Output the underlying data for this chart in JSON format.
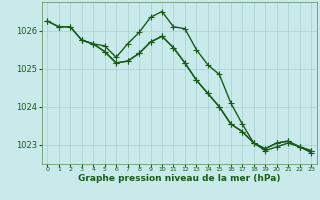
{
  "line1": {
    "x": [
      0,
      1,
      2,
      3,
      4,
      5,
      6,
      7,
      8,
      9,
      10,
      11,
      12,
      13,
      14,
      15,
      16,
      17,
      18,
      19,
      20,
      21,
      22,
      23
    ],
    "y": [
      1026.25,
      1026.1,
      1026.1,
      1025.75,
      1025.65,
      1025.6,
      1025.3,
      1025.65,
      1025.95,
      1026.35,
      1026.5,
      1026.1,
      1026.05,
      1025.5,
      1025.1,
      1024.85,
      1024.1,
      1023.55,
      1023.05,
      1022.85,
      1022.95,
      1023.05,
      1022.95,
      1022.8
    ]
  },
  "line2": {
    "x": [
      0,
      1,
      2,
      3,
      4,
      5,
      6,
      7,
      8,
      9,
      10,
      11,
      12,
      13,
      14,
      15,
      16,
      17,
      18,
      19,
      20,
      21,
      22,
      23
    ],
    "y": [
      1026.25,
      1026.1,
      1026.1,
      1025.75,
      1025.65,
      1025.45,
      1025.15,
      1025.2,
      1025.4,
      1025.7,
      1025.85,
      1025.55,
      1025.15,
      1024.7,
      1024.35,
      1024.0,
      1023.55,
      1023.35,
      1023.05,
      1022.9,
      1023.05,
      1023.1,
      1022.95,
      1022.85
    ]
  },
  "line3": {
    "x": [
      3,
      4,
      5,
      6,
      7,
      8,
      9,
      10,
      11,
      12,
      13,
      14,
      15,
      16,
      17,
      18,
      19,
      20,
      21,
      22,
      23
    ],
    "y": [
      1025.75,
      1025.65,
      1025.45,
      1025.15,
      1025.2,
      1025.4,
      1025.7,
      1025.85,
      1025.55,
      1025.15,
      1024.7,
      1024.35,
      1024.0,
      1023.55,
      1023.35,
      1023.05,
      1022.9,
      1023.05,
      1023.1,
      1022.95,
      1022.85
    ]
  },
  "bg_color": "#c8eaea",
  "line_color": "#1a5c1a",
  "grid_color": "#aacece",
  "xlabel": "Graphe pression niveau de la mer (hPa)",
  "xlabel_color": "#1a5c1a",
  "ylim": [
    1022.5,
    1026.75
  ],
  "yticks": [
    1023,
    1024,
    1025,
    1026
  ],
  "xticks": [
    0,
    1,
    2,
    3,
    4,
    5,
    6,
    7,
    8,
    9,
    10,
    11,
    12,
    13,
    14,
    15,
    16,
    17,
    18,
    19,
    20,
    21,
    22,
    23
  ],
  "marker": "+",
  "marker_size": 4,
  "linewidth": 1.0
}
